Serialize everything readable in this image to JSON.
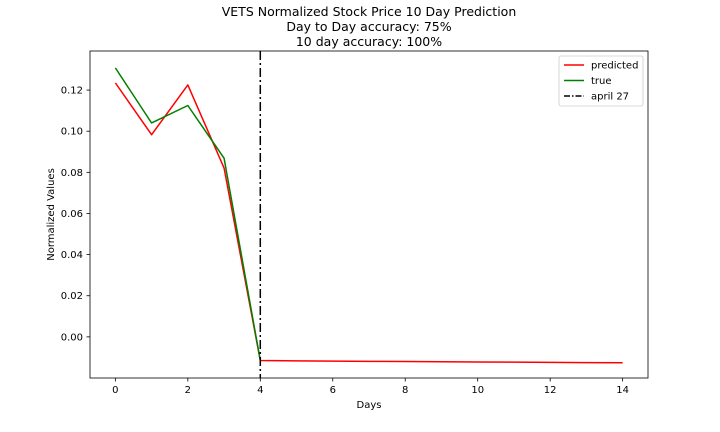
{
  "chart_data": {
    "type": "line",
    "title": [
      "VETS Normalized Stock Price 10 Day Prediction",
      "Day to Day accuracy: 75%",
      "10 day accuracy: 100%"
    ],
    "xlabel": "Days",
    "ylabel": "Normalized Values",
    "xlim": [
      -0.7,
      14.7
    ],
    "ylim": [
      -0.02,
      0.139
    ],
    "xticks": [
      0,
      2,
      4,
      6,
      8,
      10,
      12,
      14
    ],
    "yticks": [
      0.0,
      0.02,
      0.04,
      0.06,
      0.08,
      0.1,
      0.12
    ],
    "ytick_labels": [
      "0.00",
      "0.02",
      "0.04",
      "0.06",
      "0.08",
      "0.10",
      "0.12"
    ],
    "grid": false,
    "legend_position": "upper right",
    "series": [
      {
        "name": "predicted",
        "color": "#ff0000",
        "x": [
          0,
          1,
          2,
          3,
          4,
          5,
          6,
          7,
          8,
          9,
          10,
          11,
          12,
          13,
          14
        ],
        "y": [
          0.1235,
          0.0983,
          0.1225,
          0.0821,
          -0.0115,
          -0.0117,
          -0.0118,
          -0.0119,
          -0.012,
          -0.0121,
          -0.0122,
          -0.0123,
          -0.0124,
          -0.0125,
          -0.0126
        ]
      },
      {
        "name": "true",
        "color": "#008000",
        "x": [
          0,
          1,
          2,
          3,
          4
        ],
        "y": [
          0.1308,
          0.104,
          0.1125,
          0.0869,
          -0.0115
        ]
      }
    ],
    "vlines": [
      {
        "name": "april 27",
        "x": 4,
        "color": "#000000",
        "style": "dashdot"
      }
    ]
  }
}
